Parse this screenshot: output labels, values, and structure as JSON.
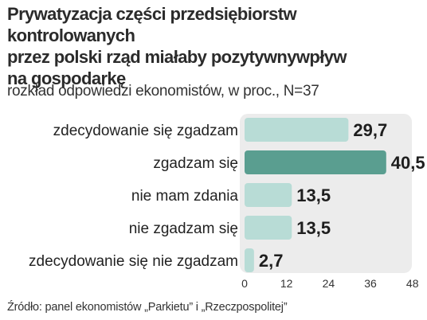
{
  "header": {
    "title_lines": [
      "Prywatyzacja części przedsiębiorstw kontrolowanych",
      "przez polski rząd miałaby pozytywnywpływ",
      "na gospodarkę"
    ],
    "subtitle": "rozkład odpowiedzi ekonomistów, w proc., N=37"
  },
  "footer": {
    "source": "Źródło: panel ekonomistów „Parkietu” i „Rzeczpospolitej”"
  },
  "colors": {
    "bar_default": "#b8dcd6",
    "bar_highlight": "#5a9e90",
    "panel_background": "#ececec"
  },
  "chart_data": {
    "type": "bar",
    "orientation": "horizontal",
    "categories": [
      "zdecydowanie się zgadzam",
      "zgadzam się",
      "nie mam zdania",
      "nie zgadzam się",
      "zdecydowanie się nie zgadzam"
    ],
    "values": [
      29.7,
      40.5,
      13.5,
      13.5,
      2.7
    ],
    "value_labels": [
      "29,7",
      "40,5",
      "13,5",
      "13,5",
      "2,7"
    ],
    "highlight_index": 1,
    "xlim": [
      0,
      48
    ],
    "xticks": [
      0,
      12,
      24,
      36,
      48
    ],
    "grid": false,
    "legend": "none"
  }
}
